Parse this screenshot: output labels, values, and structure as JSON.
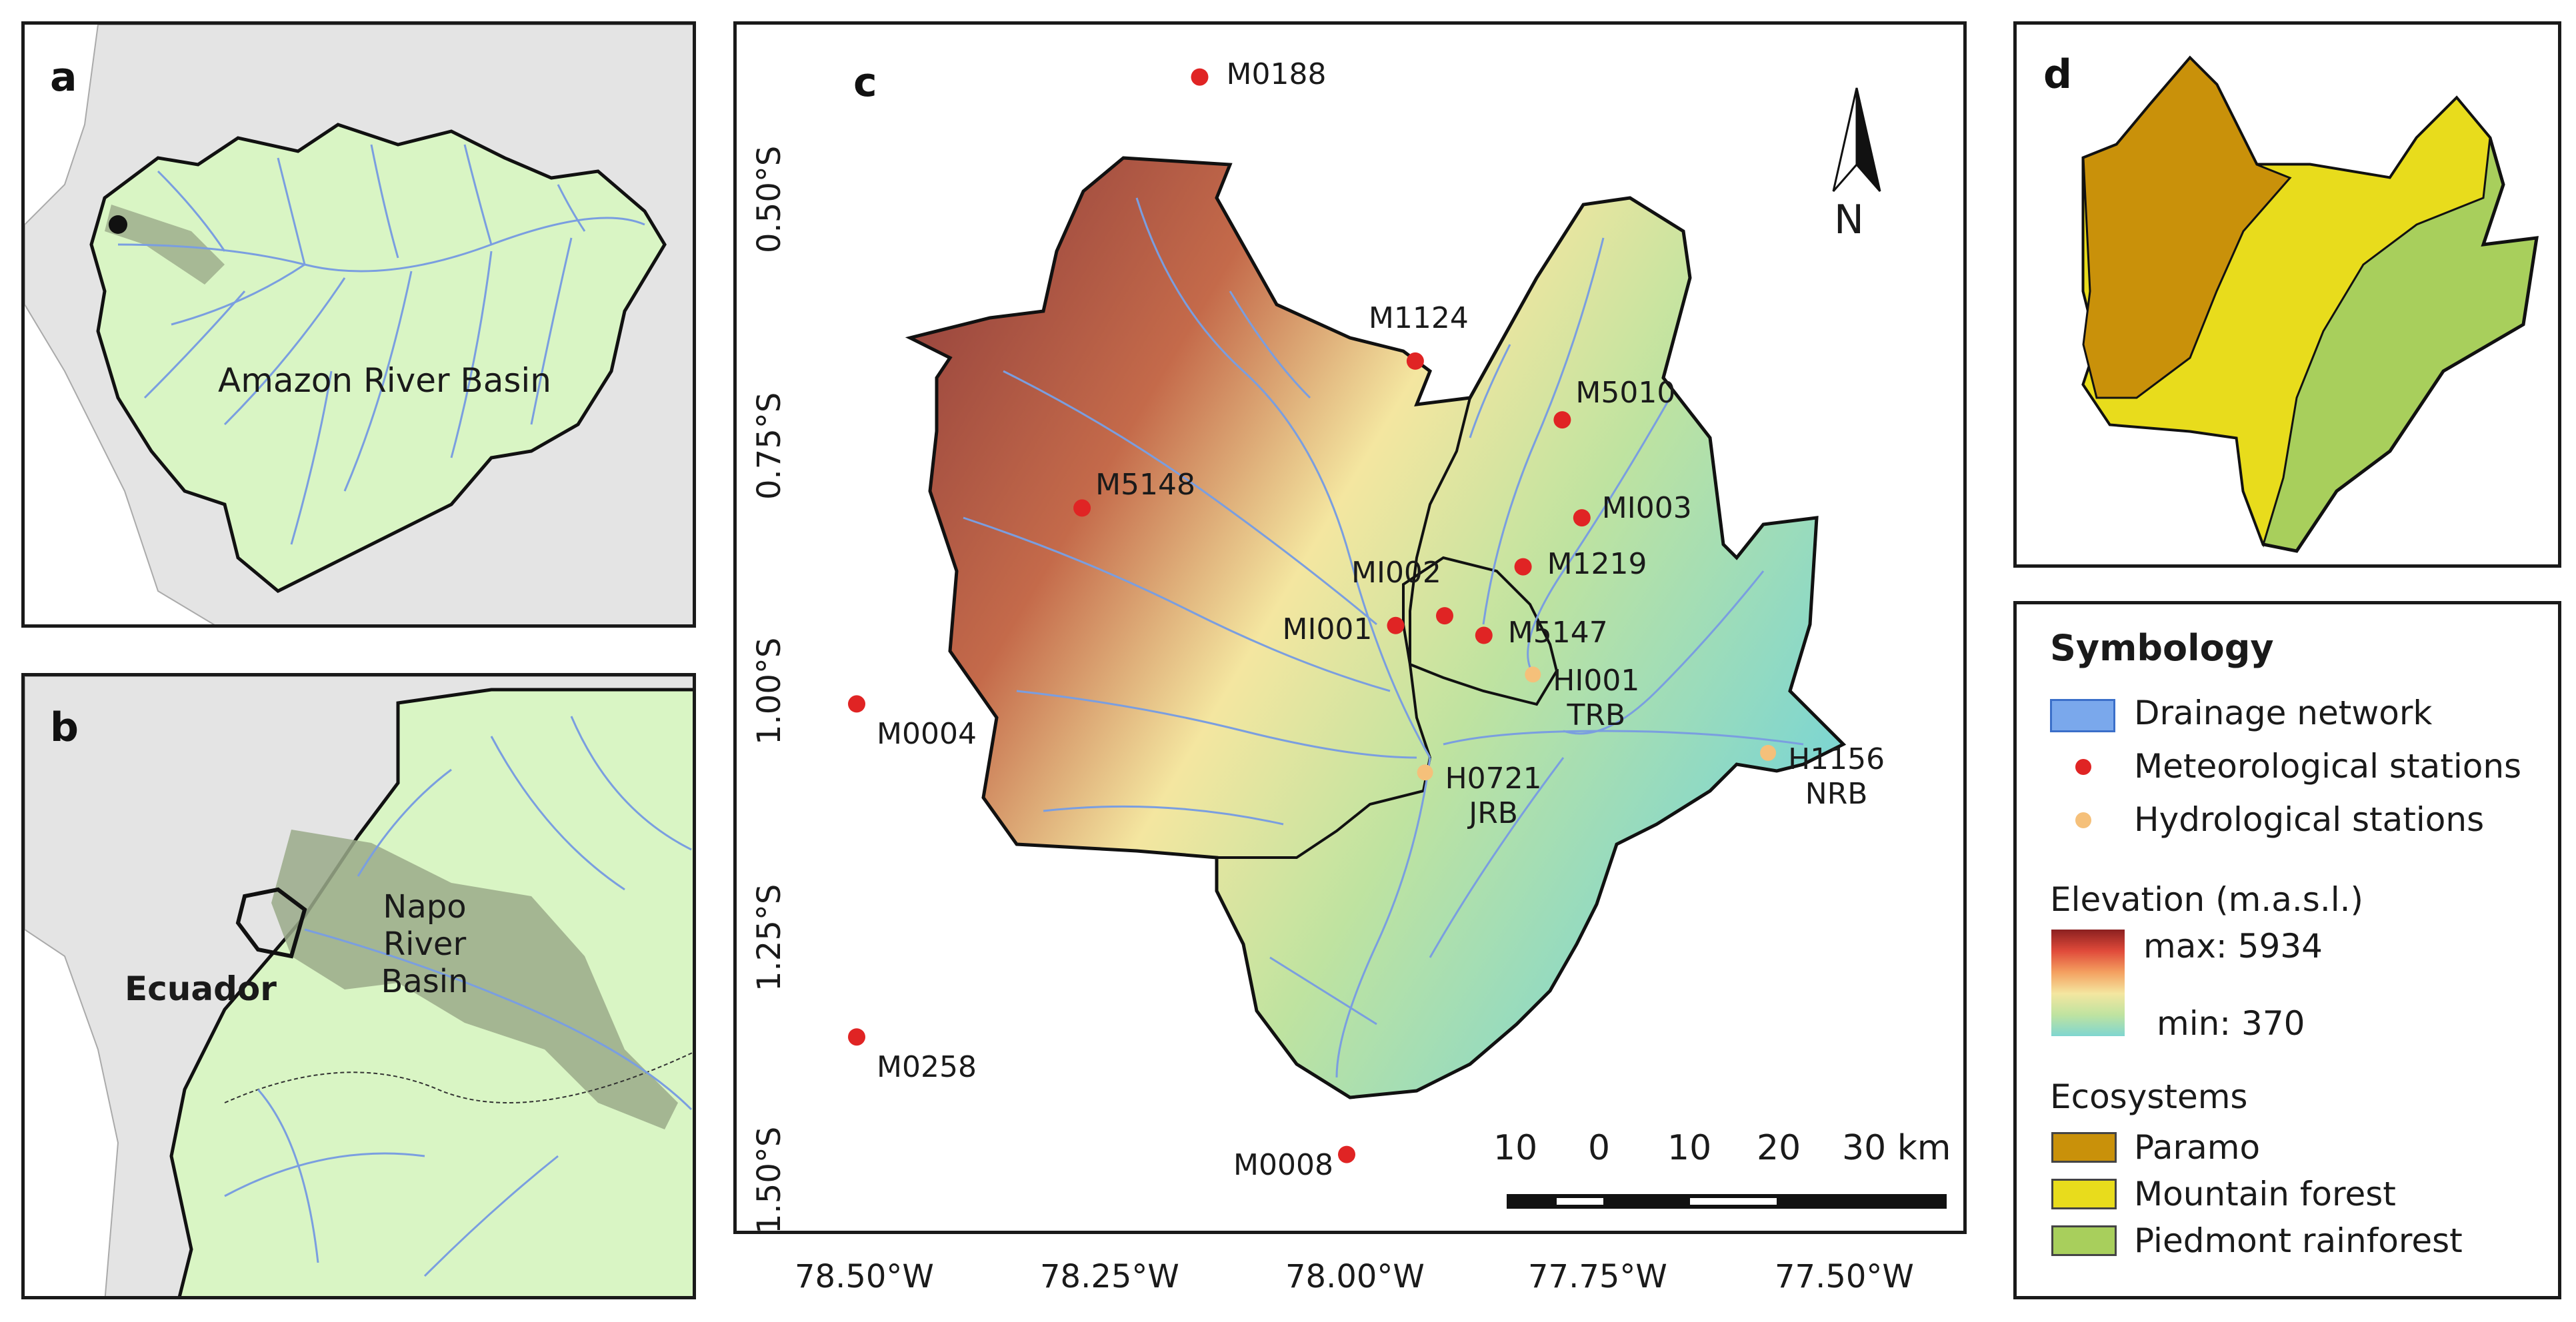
{
  "panels": {
    "a": {
      "label": "a",
      "basin_label": "Amazon River Basin"
    },
    "b": {
      "label": "b",
      "basin_label": "Napo River Basin",
      "country_label": "Ecuador"
    },
    "c": {
      "label": "c",
      "north": "N",
      "y_ticks": [
        "0.50°S",
        "0.75°S",
        "1.00°S",
        "1.25°S",
        "1.50°S"
      ],
      "x_ticks": [
        "78.50°W",
        "78.25°W",
        "78.00°W",
        "77.75°W",
        "77.50°W"
      ],
      "scalebar": {
        "labels": [
          "10",
          "0",
          "10",
          "20",
          "30 km"
        ]
      }
    },
    "d": {
      "label": "d"
    }
  },
  "stations": {
    "meteorological": [
      {
        "id": "M0188",
        "lon": -78.15,
        "lat": -0.38
      },
      {
        "id": "M1124",
        "lon": -77.93,
        "lat": -0.67
      },
      {
        "id": "M5010",
        "lon": -77.78,
        "lat": -0.73
      },
      {
        "id": "M5148",
        "lon": -78.27,
        "lat": -0.82
      },
      {
        "id": "MI003",
        "lon": -77.76,
        "lat": -0.83
      },
      {
        "id": "M1219",
        "lon": -77.82,
        "lat": -0.88
      },
      {
        "id": "MI002",
        "lon": -77.9,
        "lat": -0.93
      },
      {
        "id": "MI001",
        "lon": -77.95,
        "lat": -0.94
      },
      {
        "id": "M5147",
        "lon": -77.86,
        "lat": -0.95
      },
      {
        "id": "M0004",
        "lon": -78.5,
        "lat": -1.02
      },
      {
        "id": "M0258",
        "lon": -78.5,
        "lat": -1.36
      },
      {
        "id": "M0008",
        "lon": -78.0,
        "lat": -1.48
      }
    ],
    "hydrological": [
      {
        "id": "HI001",
        "sub": "TRB",
        "lon": -77.81,
        "lat": -0.99
      },
      {
        "id": "H0721",
        "sub": "JRB",
        "lon": -77.92,
        "lat": -1.09
      },
      {
        "id": "H1156",
        "sub": "NRB",
        "lon": -77.57,
        "lat": -1.07
      }
    ]
  },
  "legend": {
    "title": "Symbology",
    "items": {
      "drainage": "Drainage network",
      "meteo": "Meteorological stations",
      "hydro": "Hydrological stations"
    },
    "elevation": {
      "title": "Elevation (m.a.s.l.)",
      "max": "max: 5934",
      "min": "min: 370"
    },
    "ecosystems": {
      "title": "Ecosystems",
      "paramo": "Paramo",
      "mountain": "Mountain forest",
      "piedmont": "Piedmont rainforest"
    }
  },
  "colors": {
    "basin_fill": "#d9f5c4",
    "land_gray": "#e4e4e4",
    "river": "#7a9ee0",
    "meteo_dot": "#e02424",
    "hydro_dot": "#f5c07a",
    "paramo": "#c9910a",
    "mountain": "#e8dc1c",
    "piedmont": "#a8cf5c",
    "elev_high": "#8b3a3a",
    "elev_mid": "#f4e6a0",
    "elev_low": "#7fd6d0"
  }
}
